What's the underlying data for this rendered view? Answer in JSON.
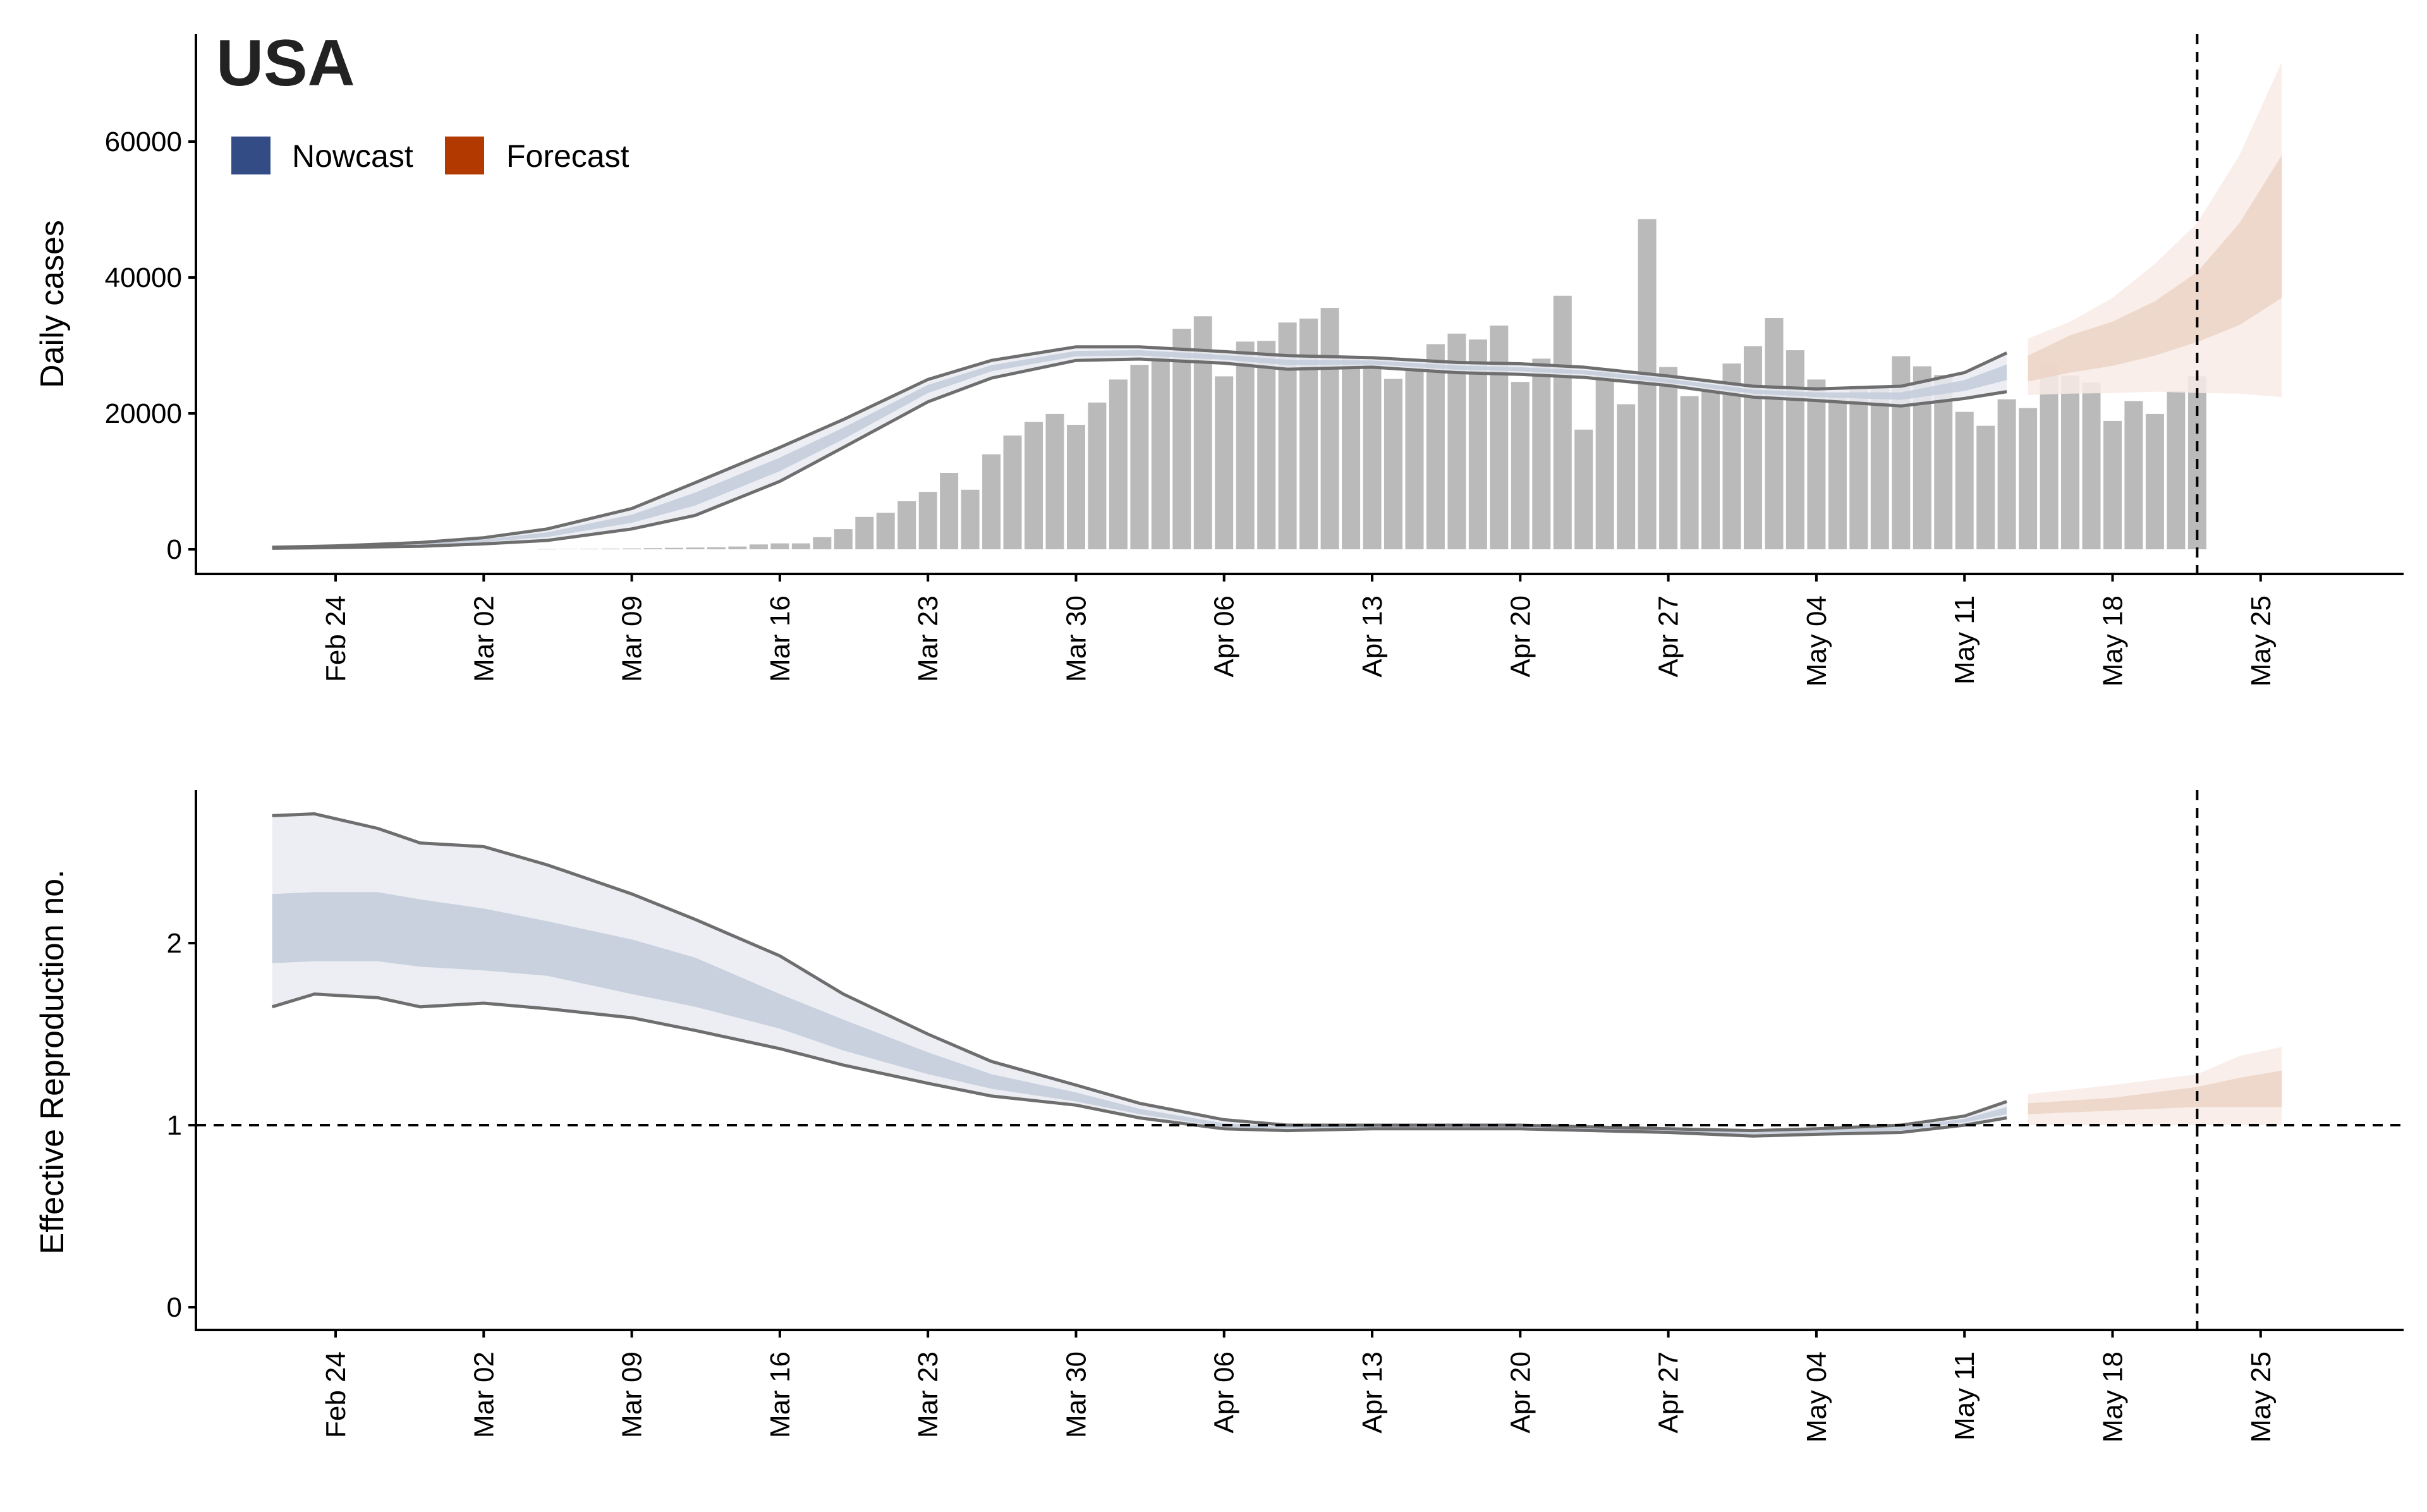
{
  "chart_data": [
    {
      "type": "bar+area",
      "title": "USA",
      "xlabel": "",
      "ylabel": "Daily cases",
      "ylim": [
        -3500,
        72000
      ],
      "xlim": [
        "02-15",
        "05-29"
      ],
      "yticks": [
        0,
        20000,
        40000,
        60000
      ],
      "ytick_labels": [
        "0",
        "20000",
        "40000",
        "60000"
      ],
      "xticks": [
        "02-24",
        "03-02",
        "03-09",
        "03-16",
        "03-23",
        "03-30",
        "04-06",
        "04-13",
        "04-20",
        "04-27",
        "05-04",
        "05-11",
        "05-18",
        "05-25"
      ],
      "xtick_labels": [
        "Feb 24",
        "Mar 02",
        "Mar 09",
        "Mar 16",
        "Mar 23",
        "Mar 30",
        "Apr 06",
        "Apr 13",
        "Apr 20",
        "Apr 27",
        "May 04",
        "May 11",
        "May 18",
        "May 25"
      ],
      "legend": [
        {
          "label": "Nowcast",
          "color": "#344c86"
        },
        {
          "label": "Forecast",
          "color": "#b23a00"
        }
      ],
      "legend_placement": "top-left",
      "grid": false,
      "vline": "05-22",
      "bars": {
        "start": "03-05",
        "color": "#bababa",
        "values": [
          30,
          50,
          70,
          100,
          130,
          170,
          210,
          260,
          310,
          410,
          720,
          870,
          870,
          1790,
          2970,
          4760,
          5380,
          7070,
          8450,
          11260,
          8760,
          13980,
          16740,
          18740,
          19920,
          18330,
          21600,
          24990,
          27140,
          28830,
          32460,
          34300,
          25450,
          30570,
          30670,
          33380,
          33950,
          35530,
          28400,
          27750,
          25090,
          26880,
          30200,
          31740,
          30870,
          32920,
          24630,
          28060,
          37320,
          17610,
          26520,
          21350,
          48590,
          26830,
          22530,
          24120,
          27340,
          29900,
          34050,
          29290,
          24990,
          22630,
          23810,
          24120,
          28420,
          26930,
          25650,
          20220,
          18180,
          22070,
          20790,
          27140,
          25550,
          24520,
          18890,
          21810,
          19920,
          23300,
          25450
        ]
      },
      "nowcast": {
        "outer_color": "#e9ebf1",
        "inner_color": "#c3cbdb",
        "line_color": "#6e6e6e",
        "points": [
          [
            "02-21",
            150,
            300,
            195,
            255
          ],
          [
            "02-24",
            250,
            500,
            325,
            425
          ],
          [
            "02-28",
            450,
            1000,
            600,
            850
          ],
          [
            "03-02",
            800,
            1700,
            1070,
            1430
          ],
          [
            "03-05",
            1300,
            3000,
            1800,
            2500
          ],
          [
            "03-09",
            3000,
            6000,
            3900,
            5100
          ],
          [
            "03-12",
            5000,
            9800,
            6450,
            8350
          ],
          [
            "03-16",
            10000,
            15000,
            11500,
            13500
          ],
          [
            "03-19",
            15000,
            19100,
            16200,
            17900
          ],
          [
            "03-23",
            21700,
            25000,
            23000,
            24200
          ],
          [
            "03-26",
            25200,
            27800,
            26200,
            27100
          ],
          [
            "03-30",
            27800,
            29800,
            28400,
            29200
          ],
          [
            "04-02",
            28000,
            29800,
            28500,
            29300
          ],
          [
            "04-06",
            27400,
            29100,
            27900,
            28600
          ],
          [
            "04-09",
            26500,
            28500,
            27100,
            27900
          ],
          [
            "04-13",
            26800,
            28200,
            27200,
            27800
          ],
          [
            "04-17",
            26000,
            27500,
            26450,
            27050
          ],
          [
            "04-20",
            25750,
            27300,
            26200,
            26800
          ],
          [
            "04-23",
            25300,
            26800,
            25750,
            26350
          ],
          [
            "04-27",
            24100,
            25500,
            24500,
            25100
          ],
          [
            "05-01",
            22400,
            24000,
            22900,
            23500
          ],
          [
            "05-04",
            21900,
            23600,
            22400,
            23100
          ],
          [
            "05-08",
            21100,
            24000,
            22000,
            23100
          ],
          [
            "05-11",
            22200,
            26000,
            23300,
            24900
          ],
          [
            "05-13",
            23200,
            28900,
            24900,
            27200
          ]
        ]
      },
      "forecast": {
        "outer_color": "#f8ebe5",
        "inner_color": "#ecd3c6",
        "points": [
          [
            "05-14",
            22700,
            31000,
            24700,
            28500
          ],
          [
            "05-16",
            22900,
            33500,
            26000,
            31500
          ],
          [
            "05-18",
            23000,
            37000,
            27000,
            33500
          ],
          [
            "05-20",
            23200,
            42000,
            28500,
            36500
          ],
          [
            "05-22",
            23000,
            48000,
            30500,
            40800
          ],
          [
            "05-24",
            22900,
            58000,
            33000,
            48000
          ],
          [
            "05-26",
            22400,
            71700,
            37000,
            58000
          ]
        ]
      }
    },
    {
      "type": "area",
      "title": "",
      "xlabel": "",
      "ylabel": "Effective Reproduction no.",
      "ylim": [
        -0.12,
        2.85
      ],
      "xlim": [
        "02-15",
        "05-29"
      ],
      "yticks": [
        0,
        1,
        2
      ],
      "ytick_labels": [
        "0",
        "1",
        "2"
      ],
      "xticks": [
        "02-24",
        "03-02",
        "03-09",
        "03-16",
        "03-23",
        "03-30",
        "04-06",
        "04-13",
        "04-20",
        "04-27",
        "05-04",
        "05-11",
        "05-18",
        "05-25"
      ],
      "xtick_labels": [
        "Feb 24",
        "Mar 02",
        "Mar 09",
        "Mar 16",
        "Mar 23",
        "Mar 30",
        "Apr 06",
        "Apr 13",
        "Apr 20",
        "Apr 27",
        "May 04",
        "May 11",
        "May 18",
        "May 25"
      ],
      "grid": false,
      "vline": "05-22",
      "hline": 1,
      "nowcast": {
        "outer_color": "#e9ebf1",
        "inner_color": "#c3cbdb",
        "line_color": "#6e6e6e",
        "points": [
          [
            "02-21",
            1.65,
            2.7,
            1.89,
            2.27
          ],
          [
            "02-23",
            1.72,
            2.71,
            1.9,
            2.28
          ],
          [
            "02-26",
            1.7,
            2.63,
            1.9,
            2.28
          ],
          [
            "02-28",
            1.65,
            2.55,
            1.87,
            2.24
          ],
          [
            "03-02",
            1.67,
            2.53,
            1.85,
            2.19
          ],
          [
            "03-05",
            1.64,
            2.43,
            1.82,
            2.12
          ],
          [
            "03-09",
            1.59,
            2.27,
            1.72,
            2.02
          ],
          [
            "03-12",
            1.52,
            2.13,
            1.65,
            1.92
          ],
          [
            "03-16",
            1.42,
            1.93,
            1.53,
            1.72
          ],
          [
            "03-19",
            1.33,
            1.72,
            1.41,
            1.58
          ],
          [
            "03-23",
            1.23,
            1.5,
            1.28,
            1.4
          ],
          [
            "03-26",
            1.16,
            1.35,
            1.2,
            1.28
          ],
          [
            "03-30",
            1.11,
            1.22,
            1.13,
            1.18
          ],
          [
            "04-02",
            1.04,
            1.12,
            1.06,
            1.09
          ],
          [
            "04-06",
            0.98,
            1.03,
            0.99,
            1.01
          ],
          [
            "04-09",
            0.97,
            1.0,
            0.98,
            0.99
          ],
          [
            "04-13",
            0.98,
            1.0,
            0.985,
            0.995
          ],
          [
            "04-20",
            0.98,
            1.0,
            0.985,
            0.995
          ],
          [
            "04-27",
            0.96,
            0.98,
            0.965,
            0.975
          ],
          [
            "05-01",
            0.94,
            0.97,
            0.95,
            0.96
          ],
          [
            "05-04",
            0.95,
            0.98,
            0.96,
            0.97
          ],
          [
            "05-08",
            0.96,
            1.0,
            0.97,
            0.99
          ],
          [
            "05-11",
            1.0,
            1.05,
            1.015,
            1.035
          ],
          [
            "05-13",
            1.04,
            1.13,
            1.06,
            1.1
          ]
        ]
      },
      "forecast": {
        "outer_color": "#f8ebe5",
        "inner_color": "#ecd3c6",
        "points": [
          [
            "05-14",
            1.0,
            1.17,
            1.06,
            1.12
          ],
          [
            "05-18",
            1.0,
            1.22,
            1.08,
            1.15
          ],
          [
            "05-22",
            1.0,
            1.28,
            1.1,
            1.21
          ],
          [
            "05-24",
            1.0,
            1.38,
            1.1,
            1.26
          ],
          [
            "05-26",
            1.0,
            1.43,
            1.1,
            1.3
          ]
        ]
      }
    }
  ]
}
